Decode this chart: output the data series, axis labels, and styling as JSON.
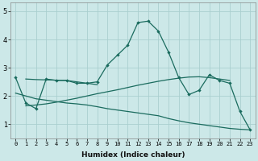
{
  "xlabel": "Humidex (Indice chaleur)",
  "bg_color": "#cce8e8",
  "line_color": "#1a6b5e",
  "grid_color": "#aacfcf",
  "xlim": [
    -0.5,
    23.5
  ],
  "ylim": [
    0.5,
    5.3
  ],
  "yticks": [
    1,
    2,
    3,
    4,
    5
  ],
  "xticks": [
    0,
    1,
    2,
    3,
    4,
    5,
    6,
    7,
    8,
    9,
    10,
    11,
    12,
    13,
    14,
    15,
    16,
    17,
    18,
    19,
    20,
    21,
    22,
    23
  ],
  "series": [
    {
      "x": [
        0,
        1,
        2,
        3,
        4,
        5,
        6,
        7,
        8,
        9,
        10,
        11,
        12,
        13,
        14,
        15,
        16,
        17,
        18,
        19,
        20,
        21,
        22,
        23
      ],
      "y": [
        2.65,
        1.75,
        1.55,
        2.6,
        2.55,
        2.55,
        2.45,
        2.45,
        2.5,
        3.1,
        3.45,
        3.8,
        4.6,
        4.65,
        4.3,
        3.55,
        2.65,
        2.05,
        2.2,
        2.75,
        2.55,
        2.45,
        1.45,
        0.8
      ],
      "marker": true
    },
    {
      "x": [
        0,
        1,
        2,
        3,
        4,
        5,
        6,
        7,
        8,
        9,
        10,
        11,
        12,
        13,
        14,
        15,
        16,
        17,
        18,
        19,
        20,
        21,
        22,
        23
      ],
      "y": [
        2.1,
        2.0,
        1.9,
        1.85,
        1.8,
        1.75,
        1.72,
        1.68,
        1.62,
        1.55,
        1.5,
        1.45,
        1.4,
        1.35,
        1.3,
        1.2,
        1.12,
        1.05,
        1.0,
        0.95,
        0.9,
        0.85,
        0.82,
        0.8
      ],
      "marker": false
    },
    {
      "x": [
        1,
        2,
        3,
        4,
        5,
        6,
        7,
        8,
        9,
        10,
        11,
        12,
        13,
        14,
        15,
        16,
        17,
        18,
        19,
        20,
        21
      ],
      "y": [
        1.65,
        1.68,
        1.72,
        1.78,
        1.85,
        1.92,
        2.0,
        2.08,
        2.15,
        2.22,
        2.3,
        2.38,
        2.45,
        2.52,
        2.58,
        2.63,
        2.67,
        2.68,
        2.65,
        2.6,
        2.55
      ],
      "marker": false
    },
    {
      "x": [
        1,
        2,
        3,
        4,
        5,
        6,
        7,
        8
      ],
      "y": [
        2.6,
        2.58,
        2.57,
        2.56,
        2.55,
        2.5,
        2.45,
        2.4
      ],
      "marker": false
    }
  ]
}
